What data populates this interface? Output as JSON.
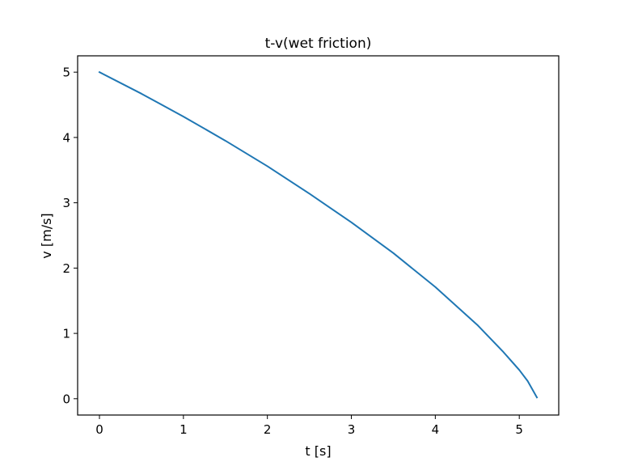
{
  "chart_data": {
    "type": "line",
    "title": "t-v(wet friction)",
    "xlabel": "t [s]",
    "ylabel": "v [m/s]",
    "xlim": [
      -0.26,
      5.47
    ],
    "ylim": [
      -0.25,
      5.25
    ],
    "xticks": [
      0,
      1,
      2,
      3,
      4,
      5
    ],
    "xtick_labels": [
      "0",
      "1",
      "2",
      "3",
      "4",
      "5"
    ],
    "yticks": [
      0,
      1,
      2,
      3,
      4,
      5
    ],
    "ytick_labels": [
      "0",
      "1",
      "2",
      "3",
      "4",
      "5"
    ],
    "grid": false,
    "legend": "none",
    "series": [
      {
        "color": "#1f77b4",
        "x": [
          0,
          0.5,
          1.0,
          1.5,
          2.0,
          2.5,
          3.0,
          3.5,
          4.0,
          4.5,
          4.8,
          5.0,
          5.1,
          5.21
        ],
        "y": [
          5.0,
          4.67,
          4.32,
          3.95,
          3.56,
          3.14,
          2.7,
          2.23,
          1.71,
          1.13,
          0.73,
          0.44,
          0.27,
          0.02
        ]
      }
    ]
  }
}
